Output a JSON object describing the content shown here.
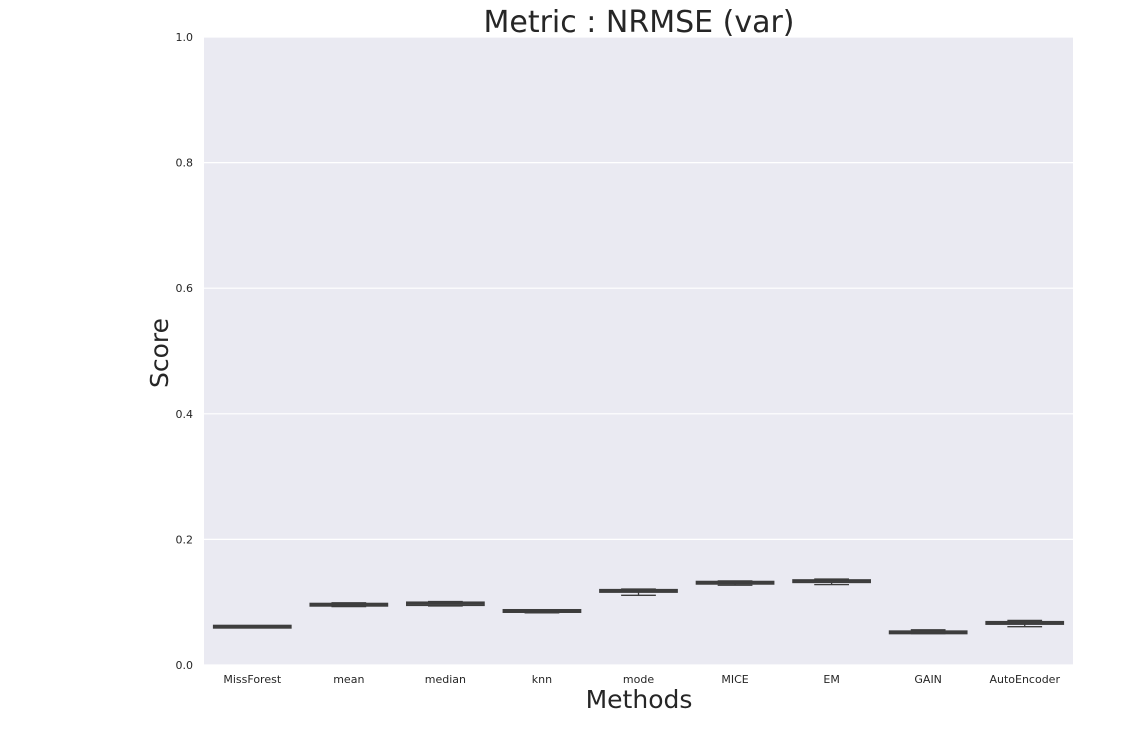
{
  "chart_data": {
    "type": "box",
    "title": "Metric : NRMSE (var)",
    "xlabel": "Methods",
    "ylabel": "Score",
    "ylim": [
      0.0,
      1.0
    ],
    "yticks": [
      "0.0",
      "0.2",
      "0.4",
      "0.6",
      "0.8",
      "1.0"
    ],
    "grid": true,
    "categories": [
      "MissForest",
      "mean",
      "median",
      "knn",
      "mode",
      "MICE",
      "EM",
      "GAIN",
      "AutoEncoder"
    ],
    "boxes": [
      {
        "whisker_low": 0.06,
        "q1": 0.06,
        "median": 0.061,
        "q3": 0.062,
        "whisker_high": 0.062
      },
      {
        "whisker_low": 0.093,
        "q1": 0.094,
        "median": 0.096,
        "q3": 0.098,
        "whisker_high": 0.099
      },
      {
        "whisker_low": 0.094,
        "q1": 0.095,
        "median": 0.098,
        "q3": 0.1,
        "whisker_high": 0.101
      },
      {
        "whisker_low": 0.083,
        "q1": 0.085,
        "median": 0.086,
        "q3": 0.087,
        "whisker_high": 0.088
      },
      {
        "whisker_low": 0.111,
        "q1": 0.116,
        "median": 0.118,
        "q3": 0.12,
        "whisker_high": 0.121
      },
      {
        "whisker_low": 0.127,
        "q1": 0.129,
        "median": 0.131,
        "q3": 0.133,
        "whisker_high": 0.134
      },
      {
        "whisker_low": 0.128,
        "q1": 0.132,
        "median": 0.134,
        "q3": 0.135,
        "whisker_high": 0.137
      },
      {
        "whisker_low": 0.05,
        "q1": 0.051,
        "median": 0.052,
        "q3": 0.053,
        "whisker_high": 0.056
      },
      {
        "whisker_low": 0.061,
        "q1": 0.065,
        "median": 0.067,
        "q3": 0.069,
        "whisker_high": 0.071
      }
    ],
    "colors": {
      "plot_background": "#eaeaf2",
      "grid": "#ffffff",
      "box_fill": "#4b4b4b",
      "box_edge": "#3d3d3d",
      "text": "#262626"
    }
  }
}
